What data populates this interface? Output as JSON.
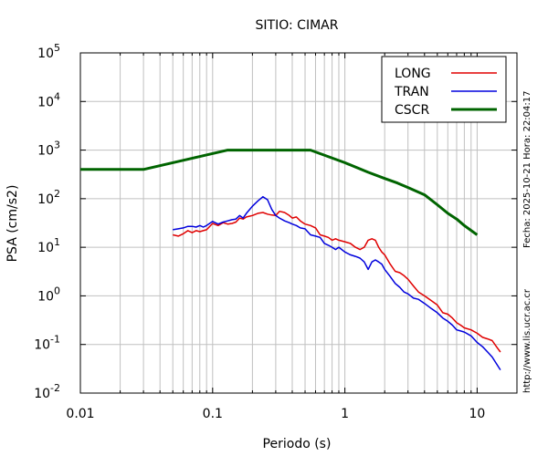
{
  "chart_data": {
    "type": "line",
    "title": "SITIO: CIMAR",
    "xlabel": "Periodo (s)",
    "ylabel": "PSA (cm/s2)",
    "xscale": "log",
    "yscale": "log",
    "xlim": [
      0.01,
      20
    ],
    "ylim": [
      0.01,
      100000
    ],
    "grid": true,
    "legend_position": "top-right",
    "x_ticks": [
      {
        "value": 0.01,
        "label": "0.01"
      },
      {
        "value": 0.1,
        "label": "0.1"
      },
      {
        "value": 1,
        "label": "1"
      },
      {
        "value": 10,
        "label": "10"
      }
    ],
    "y_ticks": [
      {
        "value": 0.01,
        "base": "10",
        "exp": "-2"
      },
      {
        "value": 0.1,
        "base": "10",
        "exp": "-1"
      },
      {
        "value": 1,
        "base": "10",
        "exp": "0"
      },
      {
        "value": 10,
        "base": "10",
        "exp": "1"
      },
      {
        "value": 100,
        "base": "10",
        "exp": "2"
      },
      {
        "value": 1000,
        "base": "10",
        "exp": "3"
      },
      {
        "value": 10000,
        "base": "10",
        "exp": "4"
      },
      {
        "value": 100000,
        "base": "10",
        "exp": "5"
      }
    ],
    "series": [
      {
        "name": "LONG",
        "color": "#e00000",
        "x": [
          0.05,
          0.055,
          0.06,
          0.065,
          0.07,
          0.075,
          0.08,
          0.085,
          0.09,
          0.1,
          0.11,
          0.12,
          0.13,
          0.14,
          0.15,
          0.16,
          0.17,
          0.18,
          0.2,
          0.22,
          0.24,
          0.26,
          0.28,
          0.3,
          0.32,
          0.35,
          0.38,
          0.4,
          0.43,
          0.46,
          0.5,
          0.55,
          0.6,
          0.65,
          0.7,
          0.75,
          0.8,
          0.85,
          0.9,
          1.0,
          1.1,
          1.2,
          1.3,
          1.4,
          1.5,
          1.6,
          1.7,
          1.8,
          1.9,
          2.0,
          2.2,
          2.4,
          2.6,
          2.8,
          3.0,
          3.3,
          3.6,
          4.0,
          4.5,
          5.0,
          5.5,
          6.0,
          6.5,
          7.0,
          7.5,
          8.0,
          9.0,
          10,
          11,
          12,
          13,
          14,
          15
        ],
        "values": [
          18,
          17,
          19,
          22,
          20,
          22,
          21,
          22,
          23,
          31,
          28,
          32,
          30,
          31,
          33,
          40,
          38,
          42,
          45,
          50,
          52,
          48,
          46,
          45,
          55,
          52,
          45,
          40,
          42,
          35,
          30,
          28,
          25,
          18,
          17,
          16,
          14,
          15,
          14,
          13,
          12,
          10,
          9,
          10,
          14,
          15,
          14,
          10,
          8,
          7,
          4.5,
          3.2,
          3,
          2.6,
          2.2,
          1.6,
          1.2,
          1.0,
          0.8,
          0.65,
          0.45,
          0.42,
          0.35,
          0.28,
          0.25,
          0.22,
          0.2,
          0.17,
          0.14,
          0.13,
          0.12,
          0.09,
          0.07
        ]
      },
      {
        "name": "TRAN",
        "color": "#0000dd",
        "x": [
          0.05,
          0.055,
          0.06,
          0.065,
          0.07,
          0.075,
          0.08,
          0.085,
          0.09,
          0.1,
          0.11,
          0.12,
          0.13,
          0.14,
          0.15,
          0.16,
          0.17,
          0.18,
          0.2,
          0.22,
          0.24,
          0.26,
          0.28,
          0.3,
          0.32,
          0.35,
          0.38,
          0.4,
          0.43,
          0.46,
          0.5,
          0.55,
          0.6,
          0.65,
          0.7,
          0.75,
          0.8,
          0.85,
          0.9,
          1.0,
          1.1,
          1.2,
          1.3,
          1.4,
          1.5,
          1.6,
          1.7,
          1.8,
          1.9,
          2.0,
          2.2,
          2.4,
          2.6,
          2.8,
          3.0,
          3.3,
          3.6,
          4.0,
          4.5,
          5.0,
          5.5,
          6.0,
          6.5,
          7.0,
          7.5,
          8.0,
          9.0,
          10,
          11,
          12,
          13,
          14,
          15
        ],
        "values": [
          23,
          24,
          25,
          27,
          27,
          26,
          28,
          26,
          28,
          34,
          30,
          33,
          35,
          37,
          38,
          45,
          40,
          50,
          70,
          90,
          110,
          95,
          60,
          45,
          40,
          35,
          32,
          30,
          28,
          25,
          24,
          18,
          17,
          16,
          12,
          11,
          10,
          9,
          10,
          8,
          7,
          6.5,
          6,
          5,
          3.5,
          5,
          5.5,
          5,
          4.5,
          3.5,
          2.5,
          1.8,
          1.5,
          1.2,
          1.1,
          0.9,
          0.85,
          0.7,
          0.55,
          0.45,
          0.35,
          0.3,
          0.25,
          0.2,
          0.19,
          0.18,
          0.15,
          0.11,
          0.09,
          0.07,
          0.055,
          0.04,
          0.03
        ]
      },
      {
        "name": "CSCR",
        "color": "#006400",
        "x": [
          0.01,
          0.03,
          0.13,
          0.55,
          1.0,
          1.5,
          2.0,
          2.5,
          3.0,
          4.0,
          5.0,
          6.0,
          7.0,
          8.0,
          10.0
        ],
        "values": [
          400,
          400,
          1000,
          1000,
          550,
          350,
          260,
          210,
          170,
          120,
          75,
          50,
          38,
          28,
          18
        ]
      }
    ]
  },
  "side_text": "Fecha: 2025-10-21 Hora: 22:04:17",
  "footer_url": "http://www.lis.ucr.ac.cr"
}
